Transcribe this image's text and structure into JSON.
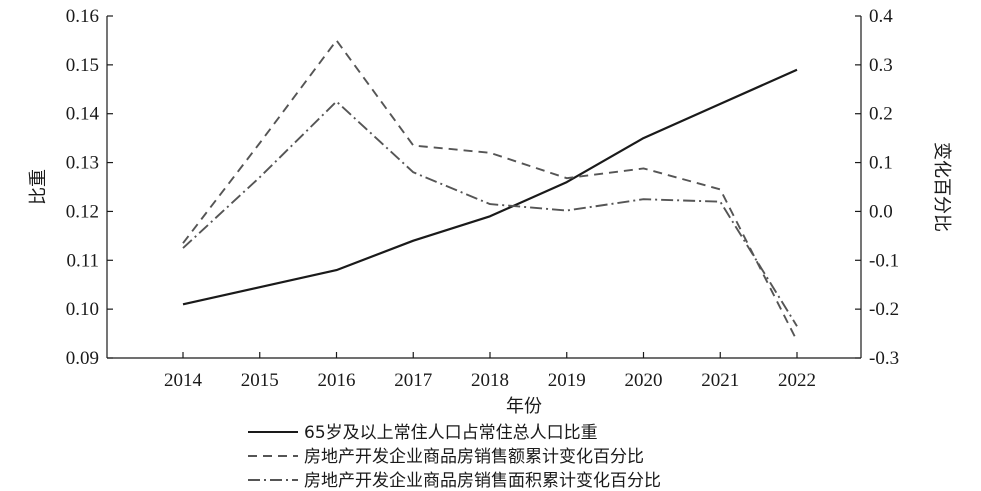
{
  "chart_data": {
    "type": "line",
    "x": [
      "2014",
      "2015",
      "2016",
      "2017",
      "2018",
      "2019",
      "2020",
      "2021",
      "2022"
    ],
    "xlabel": "年份",
    "ylabel": "比重",
    "ylabel_right": "变化百分比",
    "ylim": [
      0.09,
      0.16
    ],
    "ylim_right": [
      -0.3,
      0.4
    ],
    "yticks": [
      "0.09",
      "0.10",
      "0.11",
      "0.12",
      "0.13",
      "0.14",
      "0.15",
      "0.16"
    ],
    "yticks_right": [
      "-0.3",
      "-0.2",
      "-0.1",
      "0.0",
      "0.1",
      "0.2",
      "0.3",
      "0.4"
    ],
    "grid": false,
    "legend_position": "bottom-center",
    "series": [
      {
        "name": "65岁及以上常住人口占常住总人口比重",
        "axis": "left",
        "style": "solid",
        "color": "#1a1a1a",
        "values": [
          0.101,
          0.1045,
          0.108,
          0.114,
          0.119,
          0.126,
          0.135,
          0.142,
          0.149
        ]
      },
      {
        "name": "房地产开发企业商品房销售额累计变化百分比",
        "axis": "right",
        "style": "dashed",
        "color": "#555555",
        "values": [
          -0.065,
          0.14,
          0.35,
          0.135,
          0.12,
          0.068,
          0.088,
          0.045,
          -0.265
        ]
      },
      {
        "name": "房地产开发企业商品房销售面积累计变化百分比",
        "axis": "right",
        "style": "dashdot",
        "color": "#555555",
        "values": [
          -0.075,
          0.07,
          0.225,
          0.08,
          0.015,
          0.002,
          0.025,
          0.02,
          -0.235
        ]
      }
    ]
  }
}
